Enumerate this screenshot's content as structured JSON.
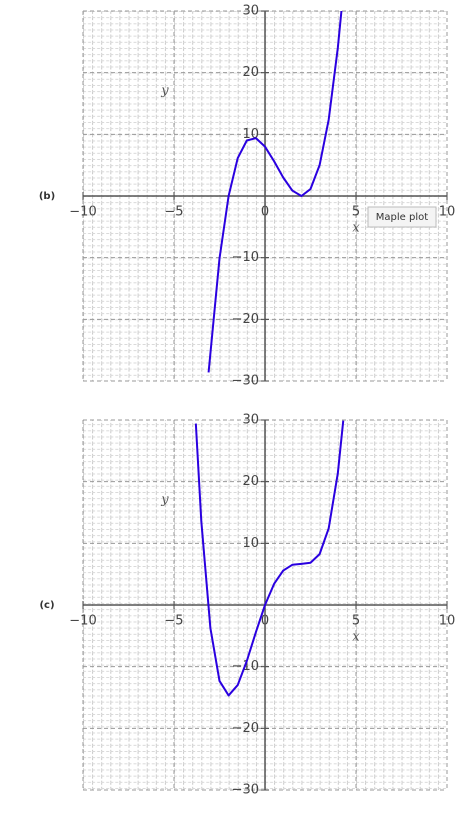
{
  "chart_data": [
    {
      "type": "line",
      "label": "(b)",
      "x_label": "x",
      "y_label": "y",
      "x": [
        -3.1,
        -2.5,
        -2,
        -1.5,
        -1,
        -0.5,
        0,
        0.5,
        1,
        1.5,
        2,
        2.5,
        3,
        3.5,
        4,
        4.2
      ],
      "series": [
        {
          "color": "#2a00e0",
          "values": [
            -28.61,
            -10.13,
            0,
            6.13,
            9,
            9.38,
            8,
            5.63,
            3,
            0.88,
            0,
            1.13,
            5,
            12.38,
            24,
            30.01
          ]
        }
      ],
      "xlim": [
        -10,
        10
      ],
      "ylim": [
        -30,
        30
      ],
      "xticks": [
        {
          "value": -10,
          "label": "−10"
        },
        {
          "value": -5,
          "label": "−5"
        },
        0,
        5,
        10
      ],
      "yticks": [
        {
          "value": -30,
          "label": "−30"
        },
        {
          "value": -20,
          "label": "−20"
        },
        {
          "value": -10,
          "label": "−10"
        },
        10,
        20,
        30
      ],
      "grid": true
    },
    {
      "type": "line",
      "label": "(c)",
      "x_label": "x",
      "y_label": "y",
      "x": [
        -3.8,
        -3.5,
        -3,
        -2.5,
        -2,
        -1.5,
        -1,
        -0.5,
        0,
        0.5,
        1,
        1.5,
        2,
        2.5,
        3,
        3.5,
        4,
        4.3
      ],
      "series": [
        {
          "color": "#2a00e0",
          "values": [
            29.43,
            13.6,
            -3.75,
            -12.31,
            -14.67,
            -12.98,
            -9.08,
            -4.4,
            0,
            3.43,
            5.58,
            6.52,
            6.67,
            6.85,
            8.25,
            12.44,
            21.33,
            29.9
          ]
        }
      ],
      "xlim": [
        -10,
        10
      ],
      "ylim": [
        -30,
        30
      ],
      "xticks": [
        {
          "value": -10,
          "label": "−10"
        },
        {
          "value": -5,
          "label": "−5"
        },
        0,
        5,
        10
      ],
      "yticks": [
        {
          "value": -30,
          "label": "−30"
        },
        {
          "value": -20,
          "label": "−20"
        },
        {
          "value": -10,
          "label": "−10"
        },
        10,
        20,
        30
      ],
      "grid": true
    }
  ],
  "tooltip": "Maple plot"
}
